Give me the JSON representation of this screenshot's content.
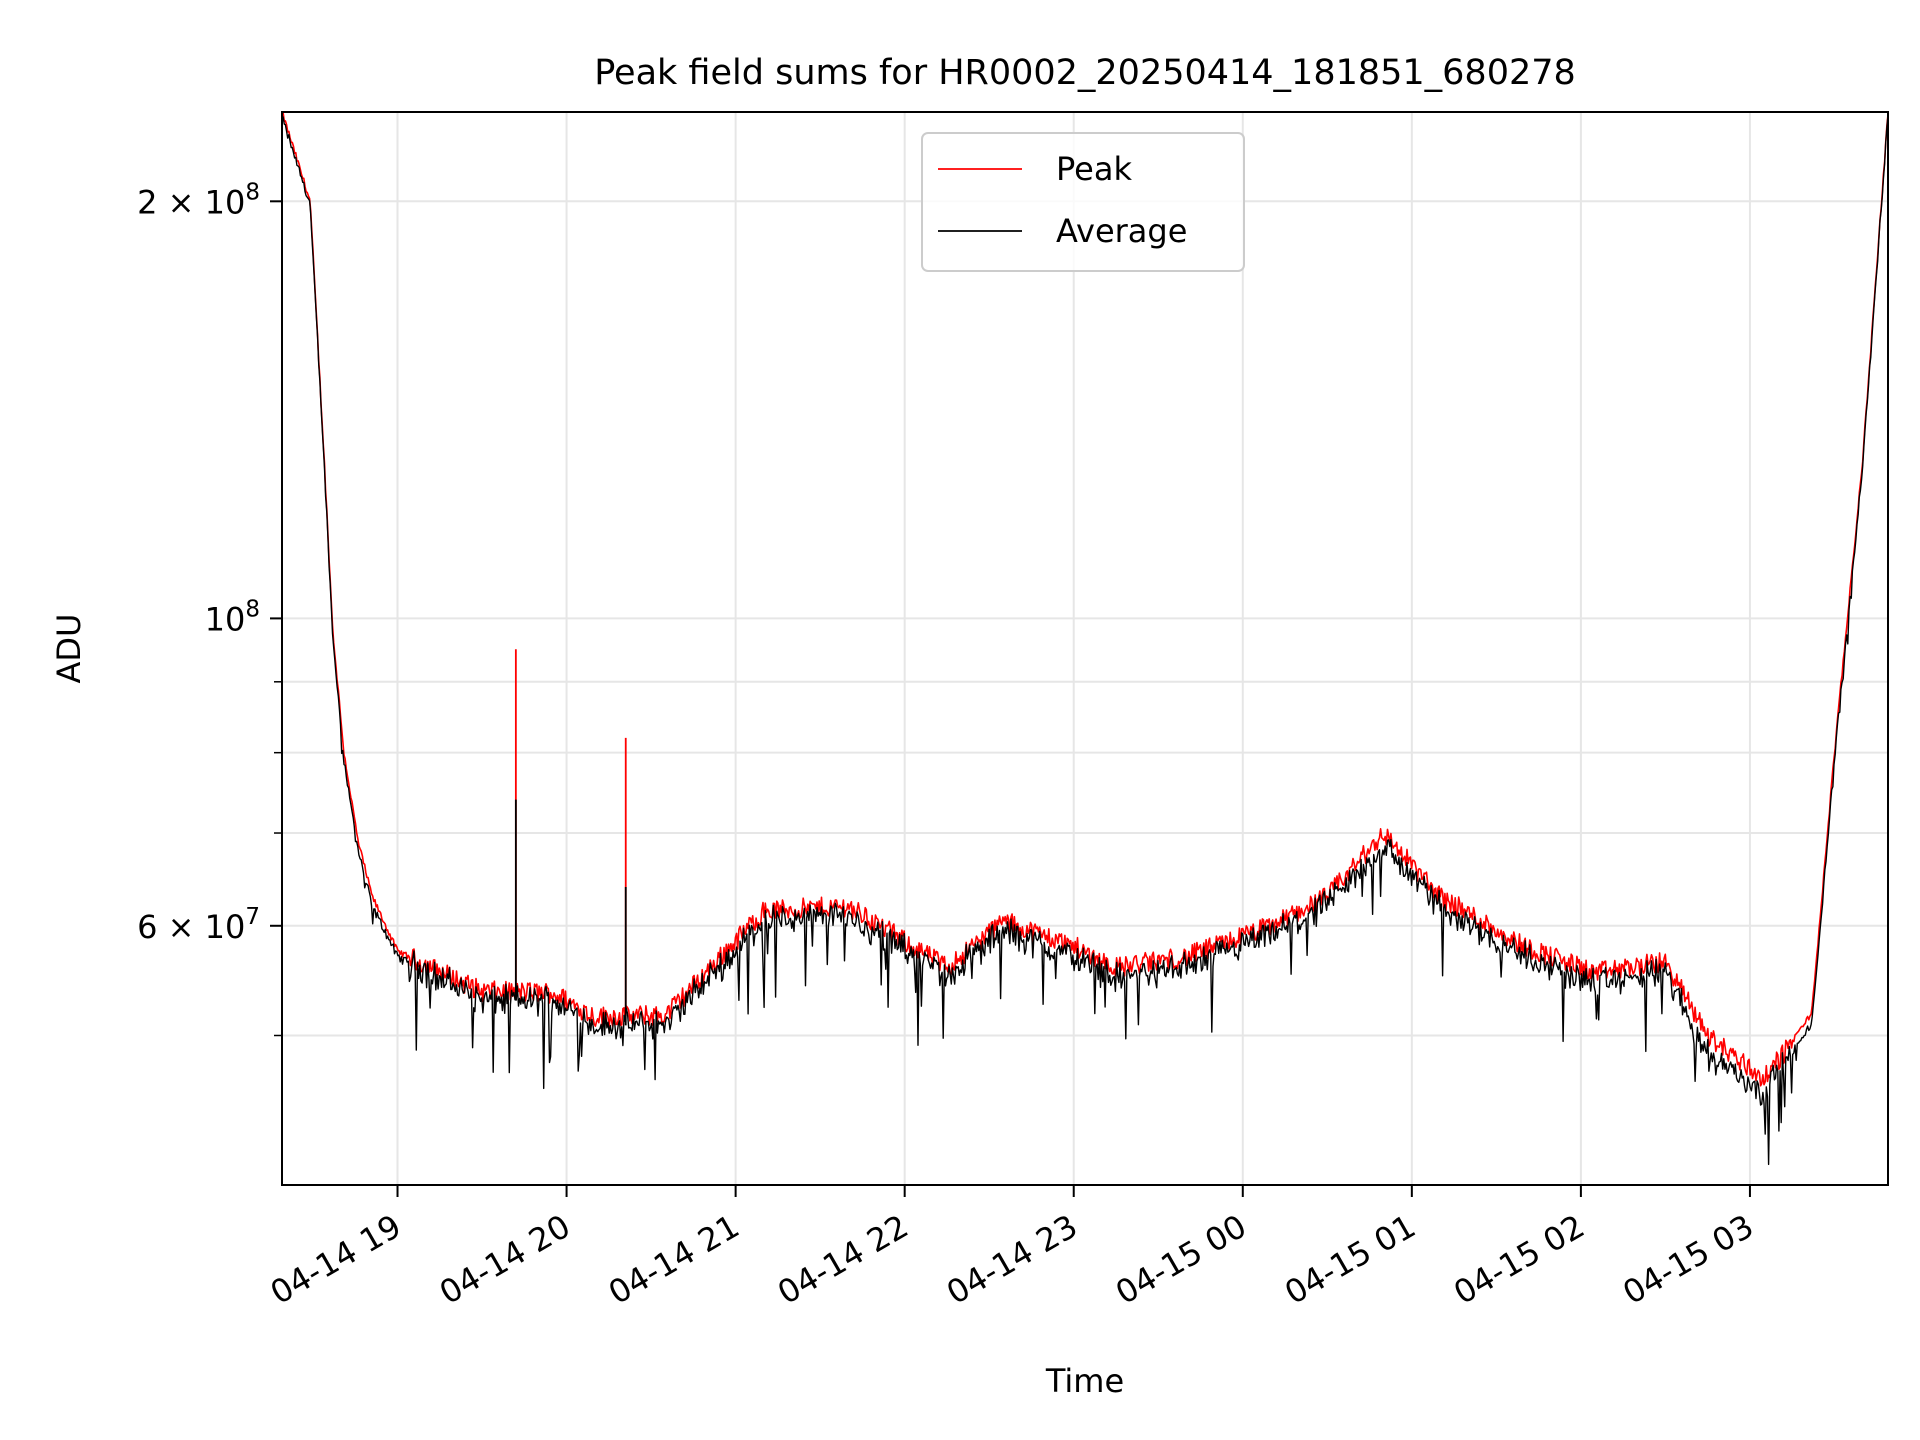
{
  "chart_data": {
    "type": "line",
    "title": "Peak field sums for HR0002_20250414_181851_680278",
    "xlabel": "Time",
    "ylabel": "ADU",
    "y_scale": "log",
    "ylim": [
      39000000,
      232000000
    ],
    "xlim": [
      "2025-04-14 18:19",
      "2025-04-15 03:49"
    ],
    "grid": true,
    "legend_position": "upper center",
    "x_ticks": [
      {
        "label": "04-14 19",
        "time": "2025-04-14 19:00"
      },
      {
        "label": "04-14 20",
        "time": "2025-04-14 20:00"
      },
      {
        "label": "04-14 21",
        "time": "2025-04-14 21:00"
      },
      {
        "label": "04-14 22",
        "time": "2025-04-14 22:00"
      },
      {
        "label": "04-14 23",
        "time": "2025-04-14 23:00"
      },
      {
        "label": "04-15 00",
        "time": "2025-04-15 00:00"
      },
      {
        "label": "04-15 01",
        "time": "2025-04-15 01:00"
      },
      {
        "label": "04-15 02",
        "time": "2025-04-15 02:00"
      },
      {
        "label": "04-15 03",
        "time": "2025-04-15 03:00"
      }
    ],
    "y_ticks": [
      {
        "value": 60000000,
        "mantissa": "6",
        "exponent": "7"
      },
      {
        "value": 100000000,
        "mantissa": "",
        "exponent": "8"
      },
      {
        "value": 200000000,
        "mantissa": "2",
        "exponent": "8"
      }
    ],
    "y_minor_ticks": [
      50000000,
      70000000,
      80000000,
      90000000
    ],
    "times_sample": [
      "2025-04-14 18:19",
      "2025-04-14 18:29",
      "2025-04-14 18:34",
      "2025-04-14 18:37",
      "2025-04-14 18:41",
      "2025-04-14 18:46",
      "2025-04-14 18:51",
      "2025-04-14 19:00",
      "2025-04-14 19:30",
      "2025-04-14 19:55",
      "2025-04-14 20:10",
      "2025-04-14 20:35",
      "2025-04-14 21:10",
      "2025-04-14 21:40",
      "2025-04-14 22:15",
      "2025-04-14 22:35",
      "2025-04-14 23:00",
      "2025-04-14 23:15",
      "2025-04-14 23:40",
      "2025-04-15 00:10",
      "2025-04-15 00:30",
      "2025-04-15 00:50",
      "2025-04-15 01:10",
      "2025-04-15 01:40",
      "2025-04-15 02:05",
      "2025-04-15 02:30",
      "2025-04-15 02:45",
      "2025-04-15 03:05",
      "2025-04-15 03:15",
      "2025-04-15 03:22",
      "2025-04-15 03:30",
      "2025-04-15 03:40",
      "2025-04-15 03:49"
    ],
    "series": [
      {
        "name": "Peak",
        "color": "#ff0000",
        "values": [
          232000000,
          200000000,
          130000000,
          98000000,
          80000000,
          69000000,
          63000000,
          57500000,
          53800000,
          53700000,
          51600000,
          51700000,
          61500000,
          62000000,
          56000000,
          60500000,
          58000000,
          56000000,
          57000000,
          60000000,
          63000000,
          70000000,
          63000000,
          58000000,
          55500000,
          56500000,
          50000000,
          46500000,
          49500000,
          52000000,
          80000000,
          130000000,
          232000000
        ],
        "spikes": [
          {
            "time": "2025-04-14 19:42",
            "value": 95000000
          },
          {
            "time": "2025-04-14 20:21",
            "value": 82000000
          }
        ]
      },
      {
        "name": "Average",
        "color": "#000000",
        "values": [
          230000000,
          199000000,
          129000000,
          97000000,
          79000000,
          68000000,
          62000000,
          57000000,
          53000000,
          53000000,
          50800000,
          50900000,
          60500000,
          61000000,
          55200000,
          59500000,
          57000000,
          55000000,
          56000000,
          59000000,
          62000000,
          68500000,
          62000000,
          57000000,
          54500000,
          55500000,
          48500000,
          45500000,
          48500000,
          51000000,
          79000000,
          129000000,
          231000000
        ],
        "spikes": [
          {
            "time": "2025-04-14 19:42",
            "value": 74000000
          },
          {
            "time": "2025-04-14 20:21",
            "value": 64000000
          }
        ]
      }
    ]
  }
}
